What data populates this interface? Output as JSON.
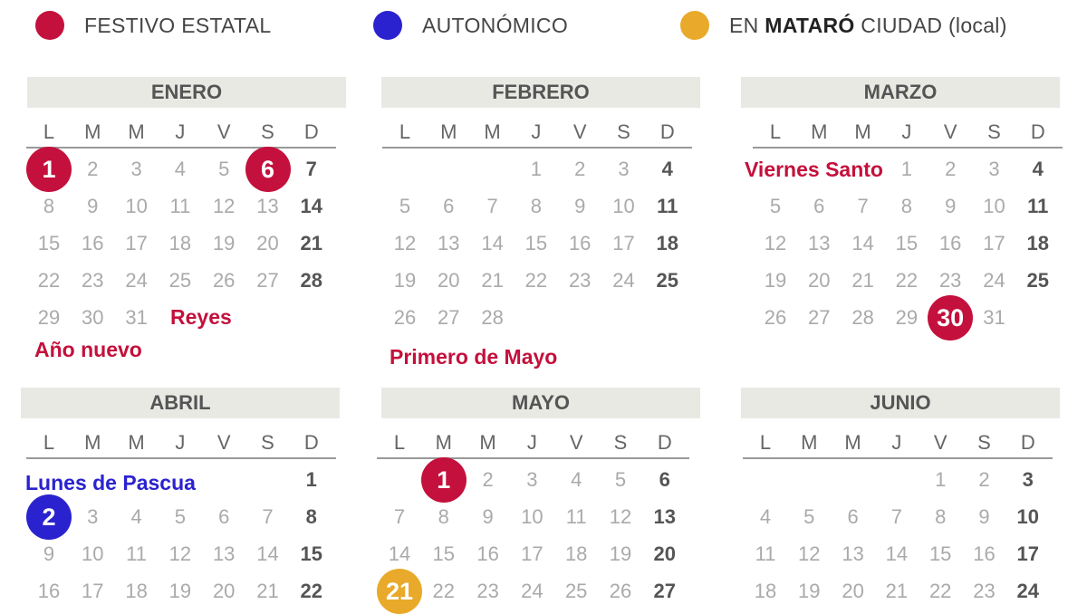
{
  "colors": {
    "estatal": "#c4103c",
    "autonomico": "#2b22cf",
    "local": "#e9a92a"
  },
  "legend": {
    "estatal": "FESTIVO ESTATAL",
    "autonomico": "AUTONÓMICO",
    "local_prefix": "EN",
    "local_city": "MATARÓ",
    "local_suffix": "CIUDAD (local)"
  },
  "weekdays": [
    "L",
    "M",
    "M",
    "J",
    "V",
    "S",
    "D"
  ],
  "months": [
    {
      "name": "ENERO",
      "weeks": [
        [
          1,
          2,
          3,
          4,
          5,
          6,
          7
        ],
        [
          8,
          9,
          10,
          11,
          12,
          13,
          14
        ],
        [
          15,
          16,
          17,
          18,
          19,
          20,
          21
        ],
        [
          22,
          23,
          24,
          25,
          26,
          27,
          28
        ],
        [
          29,
          30,
          31,
          null,
          null,
          null,
          null
        ]
      ]
    },
    {
      "name": "FEBRERO",
      "weeks": [
        [
          null,
          null,
          null,
          1,
          2,
          3,
          4
        ],
        [
          5,
          6,
          7,
          8,
          9,
          10,
          11
        ],
        [
          12,
          13,
          14,
          15,
          16,
          17,
          18
        ],
        [
          19,
          20,
          21,
          22,
          23,
          24,
          25
        ],
        [
          26,
          27,
          28,
          null,
          null,
          null,
          null
        ]
      ]
    },
    {
      "name": "MARZO",
      "weeks": [
        [
          null,
          null,
          null,
          1,
          2,
          3,
          4
        ],
        [
          5,
          6,
          7,
          8,
          9,
          10,
          11
        ],
        [
          12,
          13,
          14,
          15,
          16,
          17,
          18
        ],
        [
          19,
          20,
          21,
          22,
          23,
          24,
          25
        ],
        [
          26,
          27,
          28,
          29,
          30,
          31,
          null
        ]
      ]
    },
    {
      "name": "ABRIL",
      "weeks": [
        [
          null,
          null,
          null,
          null,
          null,
          null,
          1
        ],
        [
          2,
          3,
          4,
          5,
          6,
          7,
          8
        ],
        [
          9,
          10,
          11,
          12,
          13,
          14,
          15
        ],
        [
          16,
          17,
          18,
          19,
          20,
          21,
          22
        ]
      ]
    },
    {
      "name": "MAYO",
      "weeks": [
        [
          null,
          1,
          2,
          3,
          4,
          5,
          6
        ],
        [
          7,
          8,
          9,
          10,
          11,
          12,
          13
        ],
        [
          14,
          15,
          16,
          17,
          18,
          19,
          20
        ],
        [
          21,
          22,
          23,
          24,
          25,
          26,
          27
        ]
      ]
    },
    {
      "name": "JUNIO",
      "weeks": [
        [
          null,
          null,
          null,
          null,
          1,
          2,
          3
        ],
        [
          4,
          5,
          6,
          7,
          8,
          9,
          10
        ],
        [
          11,
          12,
          13,
          14,
          15,
          16,
          17
        ],
        [
          18,
          19,
          20,
          21,
          22,
          23,
          24
        ]
      ]
    }
  ],
  "holidays": [
    {
      "month": 0,
      "day": 1,
      "type": "estatal",
      "label": "Año\nnuevo"
    },
    {
      "month": 0,
      "day": 6,
      "type": "estatal",
      "label": "Reyes"
    },
    {
      "month": 2,
      "day": 30,
      "type": "estatal",
      "label": "Viernes\nSanto"
    },
    {
      "month": 3,
      "day": 2,
      "type": "autonomico",
      "label": "Lunes\nde Pascua"
    },
    {
      "month": 4,
      "day": 1,
      "type": "estatal",
      "label": "Primero\nde Mayo"
    },
    {
      "month": 4,
      "day": 21,
      "type": "local",
      "label": ""
    }
  ]
}
